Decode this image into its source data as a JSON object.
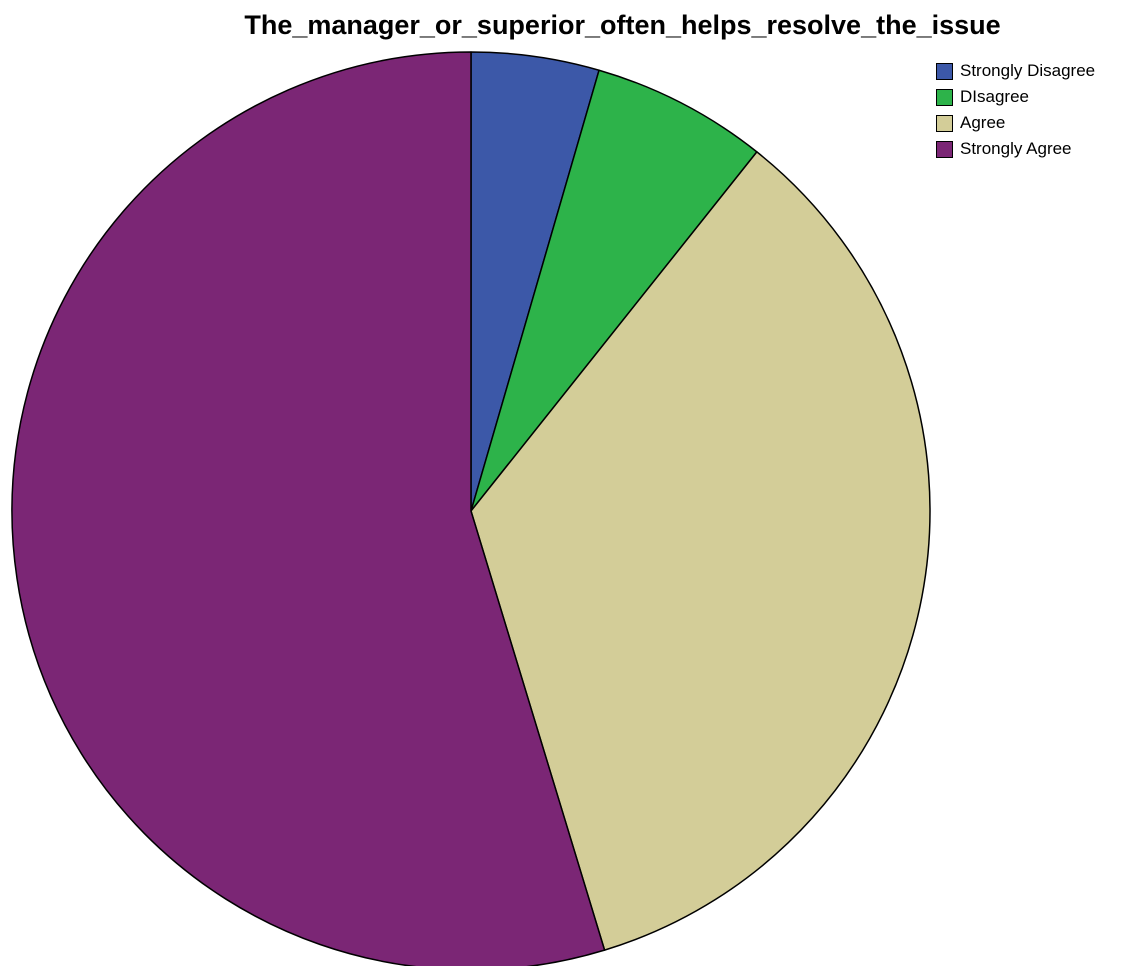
{
  "chart_data": {
    "type": "pie",
    "title": "The_manager_or_superior_often_helps_resolve_the_issue",
    "legend_position": "top-right",
    "categories": [
      "Strongly Disagree",
      "DIsagree",
      "Agree",
      "Strongly Agree"
    ],
    "values": [
      4.5,
      6.2,
      34.6,
      54.7
    ],
    "colors": [
      "#3c58a8",
      "#2db34a",
      "#d3cd98",
      "#7b2675"
    ],
    "start_angle": "12 o'clock",
    "direction": "clockwise"
  }
}
